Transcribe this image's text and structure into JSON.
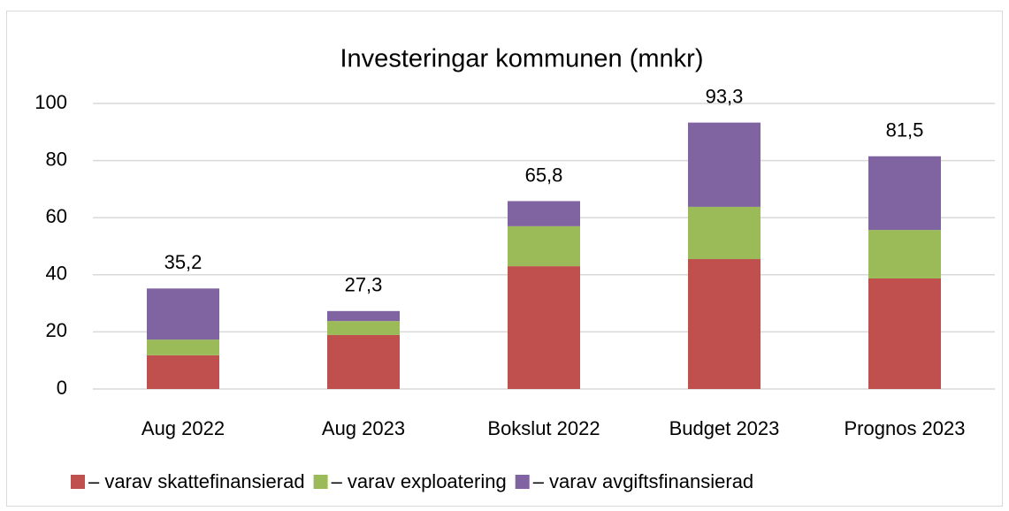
{
  "chart_data": {
    "type": "stacked_bar",
    "title": "Investeringar kommunen (mnkr)",
    "categories": [
      "Aug 2022",
      "Aug 2023",
      "Bokslut 2022",
      "Budget 2023",
      "Prognos 2023"
    ],
    "series": [
      {
        "name": "– varav skattefinansierad",
        "color": "#c0504d",
        "values": [
          11.8,
          18.9,
          43.0,
          45.5,
          38.7
        ]
      },
      {
        "name": "– varav exploatering",
        "color": "#9bbb59",
        "values": [
          5.5,
          4.9,
          14.0,
          18.3,
          17.0
        ]
      },
      {
        "name": "– varav avgiftsfinansierad",
        "color": "#8064a2",
        "values": [
          17.9,
          3.5,
          8.8,
          29.5,
          25.8
        ]
      }
    ],
    "totals": [
      35.2,
      27.3,
      65.8,
      93.3,
      81.5
    ],
    "total_labels": [
      "35,2",
      "27,3",
      "65,8",
      "93,3",
      "81,5"
    ],
    "ylim": [
      0,
      100
    ],
    "yticks": [
      0,
      20,
      40,
      60,
      80,
      100
    ],
    "grid": true,
    "legend": "bottom"
  }
}
